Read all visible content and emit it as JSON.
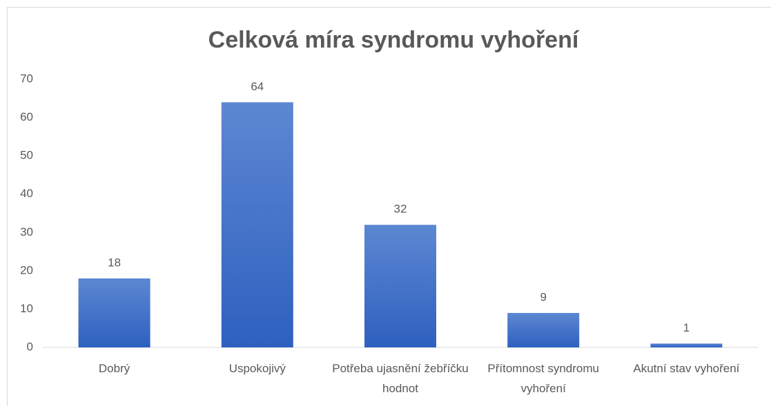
{
  "chart_data": {
    "type": "bar",
    "title": "Celková míra syndromu vyhoření",
    "categories": [
      "Dobrý",
      "Uspokojivý",
      "Potřeba ujasnění žebříčku hodnot",
      "Přítomnost syndromu vyhoření",
      "Akutní stav vyhoření"
    ],
    "values": [
      18,
      64,
      32,
      9,
      1
    ],
    "color": "#3d6cc8",
    "data_labels": true,
    "ylim": [
      0,
      70
    ],
    "yticks": [
      0,
      10,
      20,
      30,
      40,
      50,
      60,
      70
    ],
    "grid": false
  }
}
